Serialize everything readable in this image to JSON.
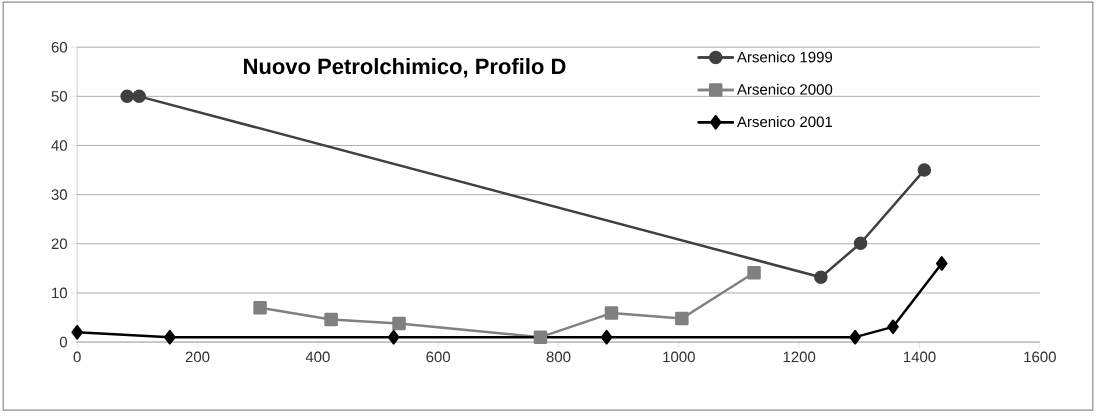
{
  "chart_data": {
    "type": "line",
    "title": "Nuovo Petrolchimico, Profilo D",
    "series": [
      {
        "name": "Arsenico 1999",
        "color": "#404040",
        "marker": "circle",
        "x": [
          83,
          103,
          1236,
          1302,
          1408
        ],
        "values": [
          50,
          50,
          13.2,
          20.1,
          35
        ]
      },
      {
        "name": "Arsenico 2000",
        "color": "#808080",
        "marker": "square",
        "x": [
          304,
          422,
          535,
          770,
          888,
          1005,
          1125
        ],
        "values": [
          7,
          4.6,
          3.8,
          1,
          5.9,
          4.8,
          14.1
        ]
      },
      {
        "name": "Arsenico 2001",
        "color": "#000000",
        "marker": "diamond",
        "x": [
          0,
          154,
          526,
          880,
          1293,
          1356,
          1437
        ],
        "values": [
          2,
          1,
          1,
          1,
          1,
          3.1,
          16
        ]
      }
    ],
    "xlim": [
      0,
      1600
    ],
    "xticks": [
      0,
      200,
      400,
      600,
      800,
      1000,
      1200,
      1400,
      1600
    ],
    "ylim": [
      0,
      60
    ],
    "yticks": [
      0,
      10,
      20,
      30,
      40,
      50,
      60
    ],
    "grid": "y",
    "legend": "top",
    "line_style": "solid"
  }
}
